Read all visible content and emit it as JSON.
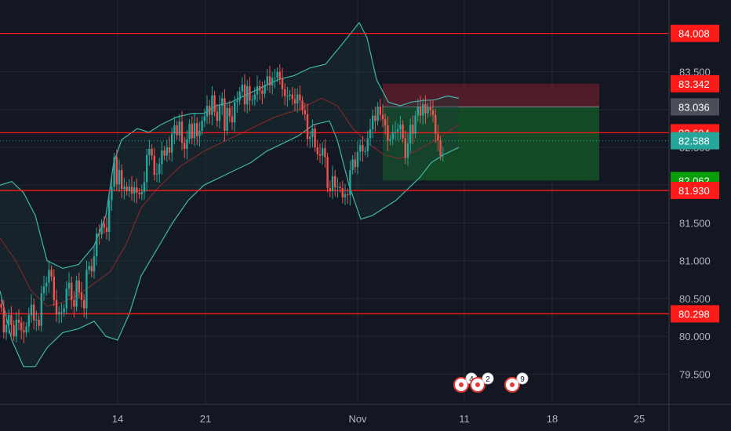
{
  "chart_data": {
    "type": "candlestick",
    "title": "",
    "xlabel": "",
    "ylabel": "",
    "ylim": [
      79.1,
      84.45
    ],
    "y_ticks": [
      79.5,
      80.0,
      80.5,
      81.0,
      81.5,
      82.0,
      82.5,
      83.0,
      83.5
    ],
    "y_tick_labels": [
      "79.500",
      "80.000",
      "80.500",
      "81.000",
      "81.500",
      "82.000",
      "82.500",
      "83.000",
      "83.500"
    ],
    "x_ticks": [
      {
        "label": "14",
        "t": 150
      },
      {
        "label": "21",
        "t": 262
      },
      {
        "label": "Nov",
        "t": 456
      },
      {
        "label": "11",
        "t": 592
      },
      {
        "label": "18",
        "t": 704
      },
      {
        "label": "25",
        "t": 815
      }
    ],
    "grid": true,
    "colors": {
      "background": "#131722",
      "grid": "#242836",
      "up": "#26a69a",
      "down": "#ef5350",
      "horizontal_line": "#ff1a1a",
      "bollinger": "#3fb6a8",
      "basis": "#8b2a2a",
      "stop_zone": "#5c1d2b",
      "target_zone": "#145224"
    },
    "candles": {
      "t_start": 0,
      "t_step": 3.2,
      "closes": [
        80.38,
        80.05,
        80.15,
        80.28,
        80.15,
        80.0,
        80.22,
        80.18,
        80.08,
        80.05,
        80.13,
        80.28,
        80.42,
        80.21,
        80.22,
        80.14,
        80.57,
        80.66,
        80.71,
        80.88,
        80.79,
        80.48,
        80.29,
        80.32,
        80.32,
        80.37,
        80.63,
        80.71,
        80.48,
        80.39,
        80.74,
        80.58,
        80.48,
        80.37,
        80.88,
        80.93,
        80.86,
        81.06,
        81.36,
        81.35,
        81.49,
        81.44,
        81.38,
        81.8,
        81.98,
        82.37,
        82.01,
        82.2,
        81.95,
        81.98,
        81.92,
        81.98,
        81.89,
        81.97,
        81.9,
        81.88,
        81.91,
        82.04,
        82.4,
        82.48,
        82.39,
        82.14,
        82.15,
        82.28,
        82.46,
        82.39,
        82.5,
        82.43,
        82.68,
        82.79,
        82.66,
        82.84,
        82.56,
        82.48,
        82.61,
        82.81,
        82.62,
        82.82,
        82.65,
        82.72,
        82.85,
        82.91,
        83.05,
        82.93,
        83.19,
        82.97,
        82.85,
        83.05,
        83.15,
        82.72,
        83.02,
        82.91,
        82.83,
        83.1,
        83.12,
        83.24,
        83.33,
        83.07,
        83.31,
        83.12,
        83.13,
        83.2,
        83.31,
        83.25,
        83.21,
        83.33,
        83.44,
        83.32,
        83.42,
        83.42,
        83.5,
        83.41,
        83.27,
        83.18,
        83.18,
        83.2,
        83.14,
        83.08,
        83.2,
        83.12,
        82.99,
        82.94,
        82.61,
        82.64,
        82.75,
        82.5,
        82.41,
        82.39,
        82.49,
        82.37,
        81.96,
        81.92,
        82.12,
        81.97,
        81.98,
        81.96,
        81.84,
        81.88,
        81.87,
        82.2,
        82.34,
        82.24,
        82.44,
        82.53,
        82.45,
        82.45,
        82.62,
        82.74,
        82.92,
        82.85,
        83.04,
        82.93,
        82.87,
        82.79,
        82.59,
        82.61,
        82.7,
        82.71,
        82.74,
        82.8,
        82.62,
        82.36,
        82.55,
        82.8,
        82.68,
        82.92,
        83.04,
        82.92,
        83.07,
        82.95,
        83.03,
        82.99,
        82.93,
        82.68,
        82.59,
        82.39,
        82.41
      ],
      "opens": [
        80.43,
        80.38,
        80.05,
        80.15,
        80.28,
        80.15,
        80.0,
        80.22,
        80.18,
        80.08,
        80.05,
        80.13,
        80.28,
        80.42,
        80.21,
        80.22,
        80.14,
        80.57,
        80.66,
        80.71,
        80.88,
        80.79,
        80.48,
        80.29,
        80.32,
        80.32,
        80.37,
        80.63,
        80.71,
        80.48,
        80.39,
        80.74,
        80.58,
        80.48,
        80.37,
        80.88,
        80.93,
        80.86,
        81.06,
        81.36,
        81.35,
        81.49,
        81.44,
        81.38,
        81.8,
        81.98,
        82.37,
        82.01,
        82.2,
        81.95,
        81.98,
        81.92,
        81.98,
        81.89,
        81.97,
        81.9,
        81.88,
        81.91,
        82.04,
        82.4,
        82.48,
        82.39,
        82.14,
        82.15,
        82.28,
        82.46,
        82.39,
        82.5,
        82.43,
        82.68,
        82.79,
        82.66,
        82.84,
        82.56,
        82.48,
        82.61,
        82.81,
        82.62,
        82.82,
        82.65,
        82.72,
        82.85,
        82.91,
        83.05,
        82.93,
        83.19,
        82.97,
        82.85,
        83.05,
        83.15,
        82.72,
        83.02,
        82.91,
        82.83,
        83.1,
        83.12,
        83.24,
        83.33,
        83.07,
        83.31,
        83.12,
        83.13,
        83.2,
        83.31,
        83.25,
        83.21,
        83.33,
        83.44,
        83.32,
        83.42,
        83.42,
        83.5,
        83.41,
        83.27,
        83.18,
        83.18,
        83.2,
        83.14,
        83.08,
        83.2,
        83.12,
        82.99,
        82.94,
        82.61,
        82.64,
        82.75,
        82.5,
        82.41,
        82.39,
        82.49,
        82.37,
        81.96,
        81.92,
        82.12,
        81.97,
        81.98,
        81.96,
        81.84,
        81.88,
        81.87,
        82.2,
        82.34,
        82.24,
        82.44,
        82.53,
        82.45,
        82.45,
        82.62,
        82.74,
        82.92,
        82.85,
        83.04,
        82.93,
        82.87,
        82.79,
        82.59,
        82.61,
        82.7,
        82.71,
        82.74,
        82.8,
        82.62,
        82.36,
        82.55,
        82.8,
        82.68,
        82.92,
        83.04,
        82.92,
        83.07,
        82.95,
        83.03,
        82.99,
        82.93,
        82.68,
        82.59,
        82.39
      ]
    },
    "bollinger": {
      "upper": [
        {
          "t": 0,
          "v": 82.0
        },
        {
          "t": 15,
          "v": 82.05
        },
        {
          "t": 30,
          "v": 81.9
        },
        {
          "t": 45,
          "v": 81.6
        },
        {
          "t": 60,
          "v": 81.0
        },
        {
          "t": 80,
          "v": 80.9
        },
        {
          "t": 100,
          "v": 80.95
        },
        {
          "t": 120,
          "v": 81.2
        },
        {
          "t": 135,
          "v": 81.6
        },
        {
          "t": 145,
          "v": 82.3
        },
        {
          "t": 155,
          "v": 82.6
        },
        {
          "t": 175,
          "v": 82.75
        },
        {
          "t": 190,
          "v": 82.7
        },
        {
          "t": 205,
          "v": 82.8
        },
        {
          "t": 225,
          "v": 82.9
        },
        {
          "t": 245,
          "v": 82.95
        },
        {
          "t": 260,
          "v": 82.95
        },
        {
          "t": 275,
          "v": 83.05
        },
        {
          "t": 295,
          "v": 83.1
        },
        {
          "t": 315,
          "v": 83.2
        },
        {
          "t": 335,
          "v": 83.3
        },
        {
          "t": 355,
          "v": 83.4
        },
        {
          "t": 375,
          "v": 83.45
        },
        {
          "t": 395,
          "v": 83.55
        },
        {
          "t": 415,
          "v": 83.6
        },
        {
          "t": 435,
          "v": 83.85
        },
        {
          "t": 458,
          "v": 84.15
        },
        {
          "t": 468,
          "v": 83.95
        },
        {
          "t": 480,
          "v": 83.4
        },
        {
          "t": 495,
          "v": 83.1
        },
        {
          "t": 510,
          "v": 83.05
        },
        {
          "t": 525,
          "v": 83.1
        },
        {
          "t": 540,
          "v": 83.12
        },
        {
          "t": 555,
          "v": 83.13
        },
        {
          "t": 570,
          "v": 83.18
        },
        {
          "t": 585,
          "v": 83.15
        }
      ],
      "lower": [
        {
          "t": 0,
          "v": 80.6
        },
        {
          "t": 15,
          "v": 79.95
        },
        {
          "t": 30,
          "v": 79.6
        },
        {
          "t": 45,
          "v": 79.6
        },
        {
          "t": 60,
          "v": 79.85
        },
        {
          "t": 80,
          "v": 80.05
        },
        {
          "t": 100,
          "v": 80.1
        },
        {
          "t": 120,
          "v": 80.2
        },
        {
          "t": 135,
          "v": 80.0
        },
        {
          "t": 150,
          "v": 79.95
        },
        {
          "t": 165,
          "v": 80.3
        },
        {
          "t": 180,
          "v": 80.8
        },
        {
          "t": 200,
          "v": 81.15
        },
        {
          "t": 220,
          "v": 81.5
        },
        {
          "t": 240,
          "v": 81.8
        },
        {
          "t": 260,
          "v": 82.0
        },
        {
          "t": 280,
          "v": 82.1
        },
        {
          "t": 300,
          "v": 82.2
        },
        {
          "t": 320,
          "v": 82.3
        },
        {
          "t": 340,
          "v": 82.45
        },
        {
          "t": 360,
          "v": 82.55
        },
        {
          "t": 380,
          "v": 82.65
        },
        {
          "t": 400,
          "v": 82.8
        },
        {
          "t": 420,
          "v": 82.85
        },
        {
          "t": 430,
          "v": 82.6
        },
        {
          "t": 445,
          "v": 82.0
        },
        {
          "t": 460,
          "v": 81.55
        },
        {
          "t": 475,
          "v": 81.6
        },
        {
          "t": 490,
          "v": 81.7
        },
        {
          "t": 505,
          "v": 81.8
        },
        {
          "t": 520,
          "v": 81.95
        },
        {
          "t": 535,
          "v": 82.1
        },
        {
          "t": 550,
          "v": 82.3
        },
        {
          "t": 565,
          "v": 82.4
        },
        {
          "t": 585,
          "v": 82.5
        }
      ],
      "basis": [
        {
          "t": 0,
          "v": 81.3
        },
        {
          "t": 20,
          "v": 81.0
        },
        {
          "t": 40,
          "v": 80.6
        },
        {
          "t": 60,
          "v": 80.4
        },
        {
          "t": 80,
          "v": 80.45
        },
        {
          "t": 100,
          "v": 80.55
        },
        {
          "t": 120,
          "v": 80.7
        },
        {
          "t": 140,
          "v": 80.85
        },
        {
          "t": 160,
          "v": 81.2
        },
        {
          "t": 180,
          "v": 81.7
        },
        {
          "t": 200,
          "v": 81.95
        },
        {
          "t": 230,
          "v": 82.25
        },
        {
          "t": 260,
          "v": 82.45
        },
        {
          "t": 290,
          "v": 82.6
        },
        {
          "t": 320,
          "v": 82.75
        },
        {
          "t": 350,
          "v": 82.9
        },
        {
          "t": 380,
          "v": 83.0
        },
        {
          "t": 410,
          "v": 83.15
        },
        {
          "t": 430,
          "v": 83.05
        },
        {
          "t": 450,
          "v": 82.75
        },
        {
          "t": 470,
          "v": 82.55
        },
        {
          "t": 490,
          "v": 82.4
        },
        {
          "t": 510,
          "v": 82.35
        },
        {
          "t": 530,
          "v": 82.45
        },
        {
          "t": 555,
          "v": 82.6
        },
        {
          "t": 585,
          "v": 82.8
        }
      ]
    },
    "horizontal_lines": [
      84.008,
      82.694,
      81.93,
      80.298
    ],
    "current_price_line": 82.588,
    "price_tags": [
      {
        "value": 84.008,
        "label": "84.008",
        "color": "#ff1a1a"
      },
      {
        "value": 83.342,
        "label": "83.342",
        "color": "#ff1a1a"
      },
      {
        "value": 83.036,
        "label": "83.036",
        "color": "#4a4e58"
      },
      {
        "value": 82.694,
        "label": "82.694",
        "color": "#ff1a1a"
      },
      {
        "value": 82.588,
        "label": "82.588",
        "color": "#26a69a"
      },
      {
        "value": 82.062,
        "label": "82.062",
        "color": "#0a9e0a"
      },
      {
        "value": 81.93,
        "label": "81.930",
        "color": "#ff1a1a"
      },
      {
        "value": 80.298,
        "label": "80.298",
        "color": "#ff1a1a"
      }
    ],
    "position": {
      "t_start": 488,
      "t_end": 764,
      "entry": 83.036,
      "stop": 83.342,
      "target": 82.062
    },
    "event_markers": [
      {
        "t": 596,
        "label": "4"
      },
      {
        "t": 617,
        "label": "2"
      },
      {
        "t": 661,
        "label": "9"
      }
    ]
  }
}
